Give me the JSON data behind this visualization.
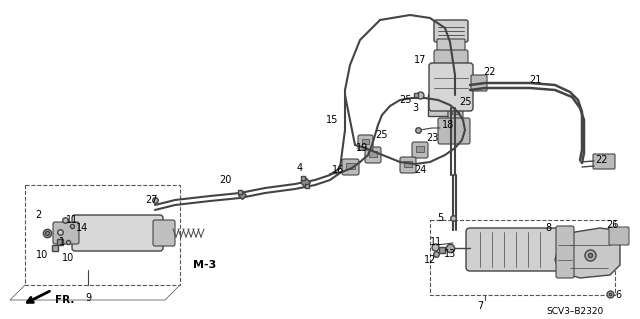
{
  "bg_color": "#ffffff",
  "diagram_color": "#444444",
  "fig_width": 6.4,
  "fig_height": 3.19,
  "watermark": "SCV3–B2320",
  "ref_code": "M-3",
  "direction_label": "FR."
}
